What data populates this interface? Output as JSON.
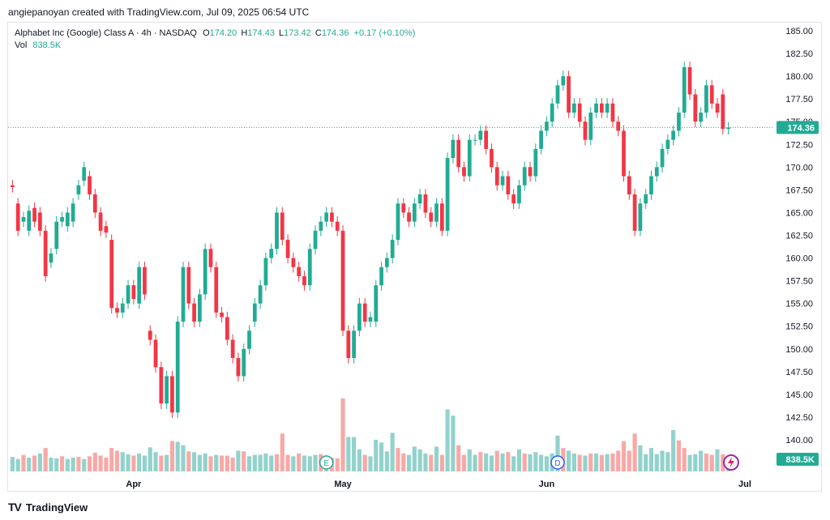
{
  "credit": "angiepanoyan created with TradingView.com, Jul 09, 2025 06:54 UTC",
  "legend": {
    "symbol": "Alphabet Inc (Google) Class A · 4h · NASDAQ",
    "o_label": "O",
    "o": "174.20",
    "h_label": "H",
    "h": "174.43",
    "l_label": "L",
    "l": "173.42",
    "c_label": "C",
    "c": "174.36",
    "change": "+0.17 (+0.10%)",
    "vol_label": "Vol",
    "vol": "838.5K"
  },
  "footer": {
    "logo": "TV",
    "brand": "TradingView"
  },
  "colors": {
    "up": "#22ab94",
    "down": "#f23645",
    "up_vol": "#92d2cc",
    "down_vol": "#f7a9a7",
    "price_line": "#22ab94"
  },
  "markers": {
    "earnings": "E",
    "dividend": "D"
  },
  "chart_data": {
    "type": "candlestick",
    "y_ticks": [
      "185.00",
      "182.50",
      "180.00",
      "177.50",
      "175.00",
      "172.50",
      "170.00",
      "167.50",
      "165.00",
      "162.50",
      "160.00",
      "157.50",
      "155.00",
      "152.50",
      "150.00",
      "147.50",
      "145.00",
      "142.50",
      "140.00"
    ],
    "ylim": [
      138.5,
      185.5
    ],
    "x_ticks": [
      {
        "label": "Apr",
        "index": 22
      },
      {
        "label": "May",
        "index": 60
      },
      {
        "label": "Jun",
        "index": 97
      },
      {
        "label": "Jul",
        "index": 133
      }
    ],
    "last_price": "174.36",
    "last_volume": "838.5K",
    "candles": [
      [
        168,
        167.8
      ],
      [
        166,
        163
      ],
      [
        164,
        164.5
      ],
      [
        163,
        165.2
      ],
      [
        165.5,
        164
      ],
      [
        165,
        163
      ],
      [
        163,
        158
      ],
      [
        159.5,
        160.5
      ],
      [
        161,
        164
      ],
      [
        164,
        164.5
      ],
      [
        163.5,
        165
      ],
      [
        164,
        166
      ],
      [
        167,
        168
      ],
      [
        168.5,
        170
      ],
      [
        169,
        167
      ],
      [
        167,
        165
      ],
      [
        165,
        163
      ],
      [
        163.5,
        162.8
      ],
      [
        162,
        154.5
      ],
      [
        154.5,
        154
      ],
      [
        154,
        155
      ],
      [
        155,
        157
      ],
      [
        157,
        155.5
      ],
      [
        155,
        159
      ],
      [
        159,
        156
      ],
      [
        152,
        151
      ],
      [
        151,
        148
      ],
      [
        148,
        144
      ],
      [
        144,
        147
      ],
      [
        147,
        143
      ],
      [
        143,
        153
      ],
      [
        153,
        159
      ],
      [
        159,
        155
      ],
      [
        155,
        153
      ],
      [
        153,
        156
      ],
      [
        156,
        161
      ],
      [
        161,
        159
      ],
      [
        159,
        154
      ],
      [
        154,
        153.5
      ],
      [
        153.5,
        151
      ],
      [
        151,
        149
      ],
      [
        149,
        147
      ],
      [
        147,
        150
      ],
      [
        150,
        152
      ],
      [
        153,
        155
      ],
      [
        155,
        157
      ],
      [
        157,
        160
      ],
      [
        160,
        161
      ],
      [
        161,
        165
      ],
      [
        165,
        162
      ],
      [
        162,
        160
      ],
      [
        160,
        159
      ],
      [
        159,
        158
      ],
      [
        158,
        157
      ],
      [
        157,
        161
      ],
      [
        161,
        163
      ],
      [
        163,
        164
      ],
      [
        164,
        165
      ],
      [
        165,
        164
      ],
      [
        164,
        163
      ],
      [
        163,
        152
      ],
      [
        152,
        149
      ],
      [
        149,
        152
      ],
      [
        152,
        155
      ],
      [
        155,
        153
      ],
      [
        153,
        153.5
      ],
      [
        153,
        157
      ],
      [
        157,
        159
      ],
      [
        159,
        160
      ],
      [
        160,
        162
      ],
      [
        162,
        166
      ],
      [
        166,
        165
      ],
      [
        165,
        164
      ],
      [
        164,
        166
      ],
      [
        166,
        167
      ],
      [
        167,
        165
      ],
      [
        165,
        164
      ],
      [
        164,
        166
      ],
      [
        166,
        163
      ],
      [
        163,
        171
      ],
      [
        171,
        173
      ],
      [
        173,
        170
      ],
      [
        170,
        169
      ],
      [
        169,
        173
      ],
      [
        173,
        173
      ],
      [
        173,
        174
      ],
      [
        174,
        172
      ],
      [
        172,
        170
      ],
      [
        170,
        168
      ],
      [
        168,
        169
      ],
      [
        169,
        167
      ],
      [
        167,
        166
      ],
      [
        166,
        168
      ],
      [
        168,
        170
      ],
      [
        170,
        169
      ],
      [
        169,
        172
      ],
      [
        172,
        174
      ],
      [
        174,
        175
      ],
      [
        175,
        177
      ],
      [
        177,
        179
      ],
      [
        179,
        180
      ],
      [
        180,
        176
      ],
      [
        176,
        177
      ],
      [
        177,
        175
      ],
      [
        175,
        173
      ],
      [
        173,
        176
      ],
      [
        176,
        177
      ],
      [
        177,
        176
      ],
      [
        176,
        177
      ],
      [
        177,
        175
      ],
      [
        175,
        174
      ],
      [
        174,
        169
      ],
      [
        169,
        167
      ],
      [
        167,
        163
      ],
      [
        163,
        166
      ],
      [
        166,
        167
      ],
      [
        167,
        169
      ],
      [
        169,
        170
      ],
      [
        170,
        172
      ],
      [
        172,
        173
      ],
      [
        173,
        174
      ],
      [
        174,
        176
      ],
      [
        176,
        181
      ],
      [
        181,
        178
      ],
      [
        178,
        175
      ],
      [
        175,
        176
      ],
      [
        176,
        179
      ],
      [
        179,
        177
      ],
      [
        177,
        176
      ],
      [
        178,
        174.2
      ],
      [
        174.2,
        174.36
      ]
    ],
    "volumes": [
      [
        2.1,
        1
      ],
      [
        1.8,
        1
      ],
      [
        2.4,
        0
      ],
      [
        2.0,
        1
      ],
      [
        2.3,
        0
      ],
      [
        2.6,
        1
      ],
      [
        3.4,
        0
      ],
      [
        2.0,
        1
      ],
      [
        1.9,
        1
      ],
      [
        2.2,
        0
      ],
      [
        1.8,
        1
      ],
      [
        2.0,
        1
      ],
      [
        2.1,
        0
      ],
      [
        1.8,
        1
      ],
      [
        2.2,
        0
      ],
      [
        2.7,
        0
      ],
      [
        2.3,
        0
      ],
      [
        2.0,
        0
      ],
      [
        3.4,
        0
      ],
      [
        3.0,
        0
      ],
      [
        2.8,
        1
      ],
      [
        2.5,
        1
      ],
      [
        2.3,
        0
      ],
      [
        2.6,
        1
      ],
      [
        2.3,
        1
      ],
      [
        3.5,
        1
      ],
      [
        2.8,
        1
      ],
      [
        2.3,
        0
      ],
      [
        2.4,
        1
      ],
      [
        4.4,
        0
      ],
      [
        4.3,
        1
      ],
      [
        3.8,
        1
      ],
      [
        2.9,
        0
      ],
      [
        2.8,
        1
      ],
      [
        2.4,
        1
      ],
      [
        2.6,
        1
      ],
      [
        2.2,
        0
      ],
      [
        2.4,
        1
      ],
      [
        2.3,
        0
      ],
      [
        2.3,
        0
      ],
      [
        2.0,
        0
      ],
      [
        3.0,
        1
      ],
      [
        2.9,
        0
      ],
      [
        2.2,
        1
      ],
      [
        2.4,
        1
      ],
      [
        2.4,
        1
      ],
      [
        2.6,
        1
      ],
      [
        2.3,
        1
      ],
      [
        2.5,
        0
      ],
      [
        5.5,
        0
      ],
      [
        2.4,
        0
      ],
      [
        2.2,
        1
      ],
      [
        2.6,
        0
      ],
      [
        2.3,
        1
      ],
      [
        2.2,
        1
      ],
      [
        2.4,
        1
      ],
      [
        2.5,
        0
      ],
      [
        2.3,
        1
      ],
      [
        2.0,
        0
      ],
      [
        1.9,
        0
      ],
      [
        10.6,
        0
      ],
      [
        5.0,
        1
      ],
      [
        5.0,
        1
      ],
      [
        3.2,
        1
      ],
      [
        2.4,
        0
      ],
      [
        2.2,
        1
      ],
      [
        4.6,
        1
      ],
      [
        4.2,
        1
      ],
      [
        2.9,
        1
      ],
      [
        5.6,
        1
      ],
      [
        3.4,
        0
      ],
      [
        2.6,
        0
      ],
      [
        2.4,
        1
      ],
      [
        3.6,
        1
      ],
      [
        3.2,
        1
      ],
      [
        2.6,
        1
      ],
      [
        2.4,
        0
      ],
      [
        3.6,
        1
      ],
      [
        2.4,
        0
      ],
      [
        9.0,
        1
      ],
      [
        8.1,
        1
      ],
      [
        3.8,
        0
      ],
      [
        2.4,
        0
      ],
      [
        3.2,
        1
      ],
      [
        2.4,
        1
      ],
      [
        2.8,
        0
      ],
      [
        2.6,
        1
      ],
      [
        2.3,
        1
      ],
      [
        3.0,
        0
      ],
      [
        2.6,
        1
      ],
      [
        2.8,
        0
      ],
      [
        2.2,
        1
      ],
      [
        3.2,
        1
      ],
      [
        2.6,
        0
      ],
      [
        2.5,
        1
      ],
      [
        2.8,
        1
      ],
      [
        2.4,
        1
      ],
      [
        2.2,
        1
      ],
      [
        2.6,
        1
      ],
      [
        5.2,
        1
      ],
      [
        3.4,
        0
      ],
      [
        3.0,
        1
      ],
      [
        2.6,
        1
      ],
      [
        2.4,
        0
      ],
      [
        2.3,
        1
      ],
      [
        2.6,
        0
      ],
      [
        2.6,
        1
      ],
      [
        2.4,
        0
      ],
      [
        2.5,
        1
      ],
      [
        2.6,
        0
      ],
      [
        3.0,
        0
      ],
      [
        4.4,
        0
      ],
      [
        3.0,
        0
      ],
      [
        5.5,
        0
      ],
      [
        3.8,
        1
      ],
      [
        2.5,
        1
      ],
      [
        3.4,
        1
      ],
      [
        2.5,
        1
      ],
      [
        3.0,
        1
      ],
      [
        2.8,
        1
      ],
      [
        6.0,
        1
      ],
      [
        4.5,
        0
      ],
      [
        3.4,
        0
      ],
      [
        2.4,
        1
      ],
      [
        2.5,
        1
      ],
      [
        3.0,
        1
      ],
      [
        2.6,
        0
      ],
      [
        2.4,
        0
      ],
      [
        3.2,
        1
      ],
      [
        2.5,
        0
      ],
      [
        0.8,
        1
      ]
    ]
  }
}
